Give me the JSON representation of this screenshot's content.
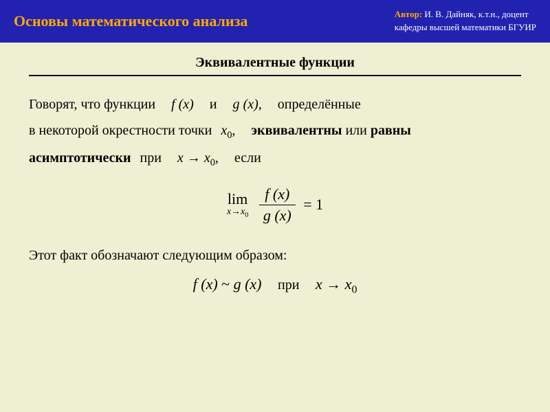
{
  "colors": {
    "header_bg": "#2222b0",
    "header_title": "#ffaa00",
    "header_text": "#ffffff",
    "page_bg": "#eff0d3",
    "text": "#000000",
    "rule": "#000000"
  },
  "header": {
    "title": "Основы математического анализа",
    "author_label": "Автор:",
    "author_name": "  И. В. Дайняк,  к.т.н., доцент",
    "author_affil": "кафедры высшей математики БГУИР"
  },
  "subtitle": "Эквивалентные функции",
  "para1": {
    "t1": "Говорят, что функции",
    "fx": "f (x)",
    "and": "и",
    "gx": "g (x),",
    "t2": "определённые",
    "t3": "в некоторой окрестности точки",
    "x0": "x",
    "x0_sub": "0",
    "comma": ",",
    "t4": "эквивалентны",
    "or": " или ",
    "t5": "равны",
    "t6": "асимптотически",
    "at": "при",
    "limit_expr_x": "x",
    "arrow": "→",
    "limit_expr_x0": "x",
    "limit_expr_x0_sub": "0",
    "comma2": ",",
    "if": "если"
  },
  "formula": {
    "lim": "lim",
    "lim_sub_x": "x",
    "lim_sub_arrow": "→",
    "lim_sub_x0": "x",
    "lim_sub_x0_sub": "0",
    "num": "f (x)",
    "den": "g (x)",
    "eq": "= 1"
  },
  "para2": "Этот факт обозначают следующим образом:",
  "notation": {
    "fx": "f (x)",
    "tilde": "~",
    "gx": "g (x)",
    "at": "при",
    "x": "x",
    "arrow": "→",
    "x0": "x",
    "x0_sub": "0"
  }
}
